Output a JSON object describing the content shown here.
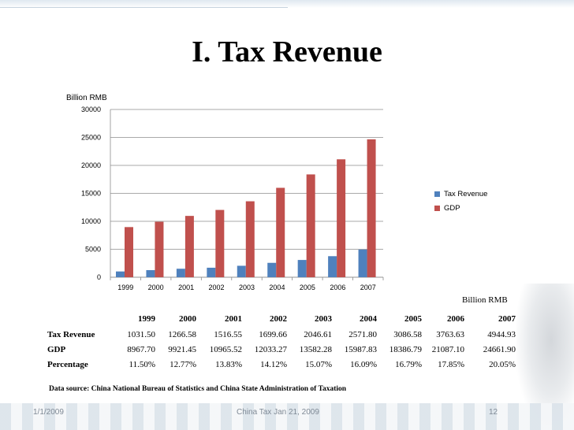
{
  "slide": {
    "title": "I. Tax Revenue",
    "source_note": "Data source: China National Bureau of Statistics and China State Administration of Taxation",
    "footer_date": "1/1/2009",
    "footer_center": "China Tax   Jan 21, 2009",
    "footer_page": "12"
  },
  "table": {
    "unit": "Billion RMB",
    "headers": [
      "",
      "1999",
      "2000",
      "2001",
      "2002",
      "2003",
      "2004",
      "2005",
      "2006",
      "2007"
    ],
    "rows": [
      [
        "Tax Revenue",
        "1031.50",
        "1266.58",
        "1516.55",
        "1699.66",
        "2046.61",
        "2571.80",
        "3086.58",
        "3763.63",
        "4944.93"
      ],
      [
        "GDP",
        "8967.70",
        "9921.45",
        "10965.52",
        "12033.27",
        "13582.28",
        "15987.83",
        "18386.79",
        "21087.10",
        "24661.90"
      ],
      [
        "Percentage",
        "11.50%",
        "12.77%",
        "13.83%",
        "14.12%",
        "15.07%",
        "16.09%",
        "16.79%",
        "17.85%",
        "20.05%"
      ]
    ]
  },
  "colors": {
    "tax": "#4f81bd",
    "gdp": "#c0504d",
    "grid": "#8c8c8c"
  },
  "chart_data": {
    "type": "bar",
    "ylabel": "Billion RMB",
    "ylim": [
      0,
      30000
    ],
    "yticks": [
      0,
      5000,
      10000,
      15000,
      20000,
      25000,
      30000
    ],
    "grid": true,
    "legend_position": "right",
    "categories": [
      "1999",
      "2000",
      "2001",
      "2002",
      "2003",
      "2004",
      "2005",
      "2006",
      "2007"
    ],
    "series": [
      {
        "name": "Tax Revenue",
        "values": [
          1031.5,
          1266.58,
          1516.55,
          1699.66,
          2046.61,
          2571.8,
          3086.58,
          3763.63,
          4944.93
        ]
      },
      {
        "name": "GDP",
        "values": [
          8967.7,
          9921.45,
          10965.52,
          12033.27,
          13582.28,
          15987.83,
          18386.79,
          21087.1,
          24661.9
        ]
      }
    ]
  }
}
